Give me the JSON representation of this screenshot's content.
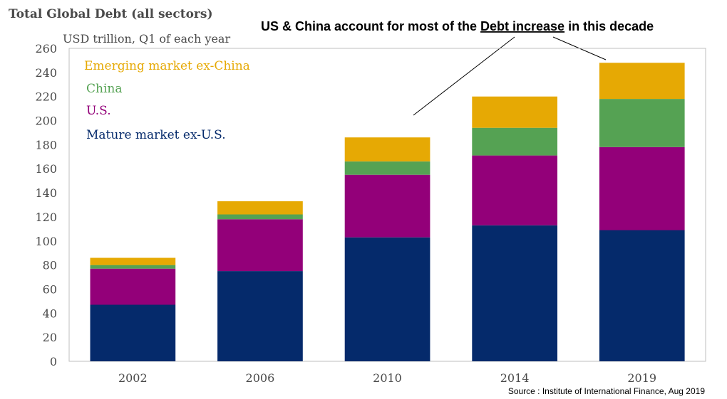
{
  "chart_data": {
    "type": "bar",
    "stacked": true,
    "title": "Total Global Debt (all sectors)",
    "ylabel": "USD trillion, Q1 of each year",
    "annotation": {
      "pre": "US & China account for most of the ",
      "highlight": "Debt increase",
      "post": " in this decade"
    },
    "source": "Source : Institute of International Finance, Aug 2019",
    "categories": [
      "2002",
      "2006",
      "2010",
      "2014",
      "2019"
    ],
    "ylim": [
      0,
      260
    ],
    "yticks": [
      "0",
      "20",
      "40",
      "60",
      "80",
      "100",
      "120",
      "140",
      "160",
      "180",
      "200",
      "220",
      "240",
      "260"
    ],
    "grid": false,
    "legend_position": "top-left",
    "series": [
      {
        "name": "Mature market ex-U.S.",
        "color": "#052a6b",
        "values": [
          47,
          75,
          103,
          113,
          109
        ]
      },
      {
        "name": "U.S.",
        "color": "#930079",
        "values": [
          30,
          43,
          52,
          58,
          69
        ]
      },
      {
        "name": "China",
        "color": "#55a253",
        "values": [
          3,
          4,
          11,
          23,
          40
        ]
      },
      {
        "name": "Emerging market ex-China",
        "color": "#e6a904",
        "values": [
          6,
          11,
          20,
          26,
          30
        ]
      }
    ],
    "legend_order": [
      3,
      2,
      1,
      0
    ]
  }
}
